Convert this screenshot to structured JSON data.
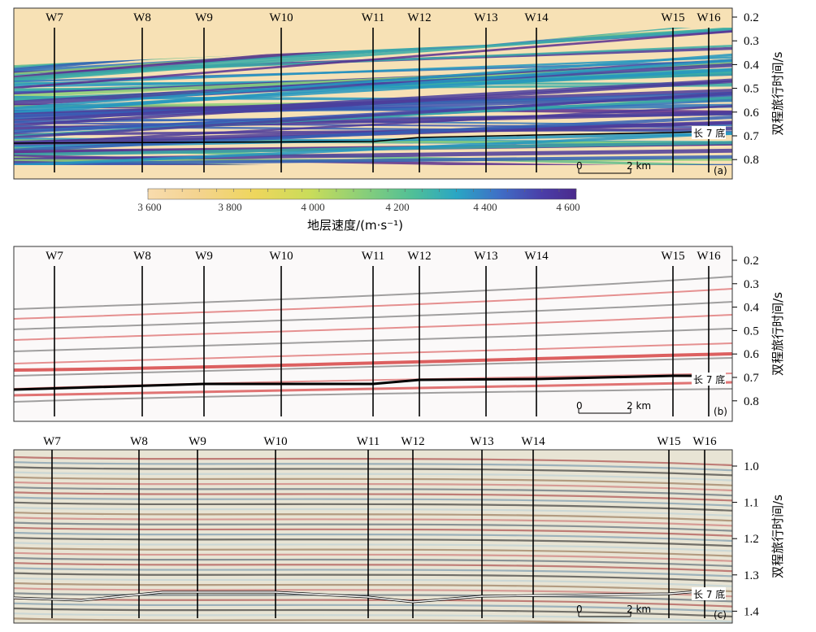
{
  "wells": [
    "W7",
    "W8",
    "W9",
    "W10",
    "W11",
    "W12",
    "W13",
    "W14",
    "W15",
    "W16"
  ],
  "horizon_label": "长 7 底",
  "axis_title": "双程旅行时间/s",
  "scale_bar": {
    "start": "0",
    "end": "2 km"
  },
  "panels": [
    {
      "tag": "(a)",
      "ticks": [
        "0.2",
        "0.3",
        "0.4",
        "0.5",
        "0.6",
        "0.7",
        "0.8"
      ]
    },
    {
      "tag": "(b)",
      "ticks": [
        "0.2",
        "0.3",
        "0.4",
        "0.5",
        "0.6",
        "0.7",
        "0.8"
      ]
    },
    {
      "tag": "(c)",
      "ticks": [
        "1.0",
        "1.1",
        "1.2",
        "1.3",
        "1.4"
      ]
    }
  ],
  "colorbar": {
    "title": "地层速度/(m·s⁻¹)",
    "ticks": [
      "3 600",
      "3 800",
      "4 000",
      "4 200",
      "4 400",
      "4 600"
    ]
  }
}
